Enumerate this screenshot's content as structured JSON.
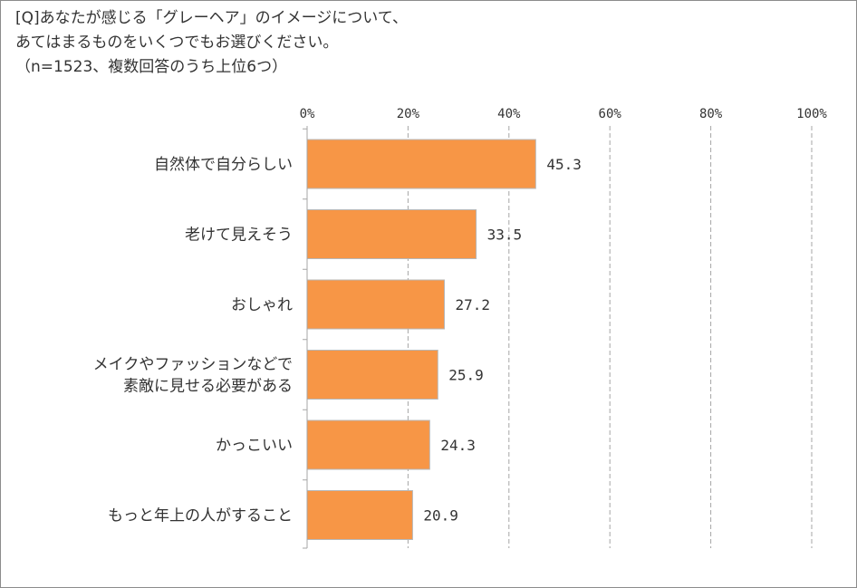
{
  "title": {
    "line1": "[Q]あなたが感じる「グレーヘア」のイメージについて、",
    "line2": "あてはまるものをいくつでもお選びください。",
    "line3": "（n=1523、複数回答のうち上位6つ）"
  },
  "colors": {
    "bar": "#f79646",
    "bar_edge": "#b7b7b7",
    "grid": "#a6a6a6",
    "text": "#333333"
  },
  "chart_data": {
    "type": "bar",
    "orientation": "horizontal",
    "categories": [
      [
        "自然体で自分らしい"
      ],
      [
        "老けて見えそう"
      ],
      [
        "おしゃれ"
      ],
      [
        "メイクやファッションなどで",
        "素敵に見せる必要がある"
      ],
      [
        "かっこいい"
      ],
      [
        "もっと年上の人がすること"
      ]
    ],
    "values": [
      45.3,
      33.5,
      27.2,
      25.9,
      24.3,
      20.9
    ],
    "value_labels": [
      "45.3",
      "33.5",
      "27.2",
      "25.9",
      "24.3",
      "20.9"
    ],
    "xlim": [
      0,
      100
    ],
    "ticks": [
      0,
      20,
      40,
      60,
      80,
      100
    ],
    "tick_labels": [
      "0%",
      "20%",
      "40%",
      "60%",
      "80%",
      "100%"
    ],
    "grid": true,
    "grid_style": "dashed vertical",
    "axis_position": "top"
  }
}
